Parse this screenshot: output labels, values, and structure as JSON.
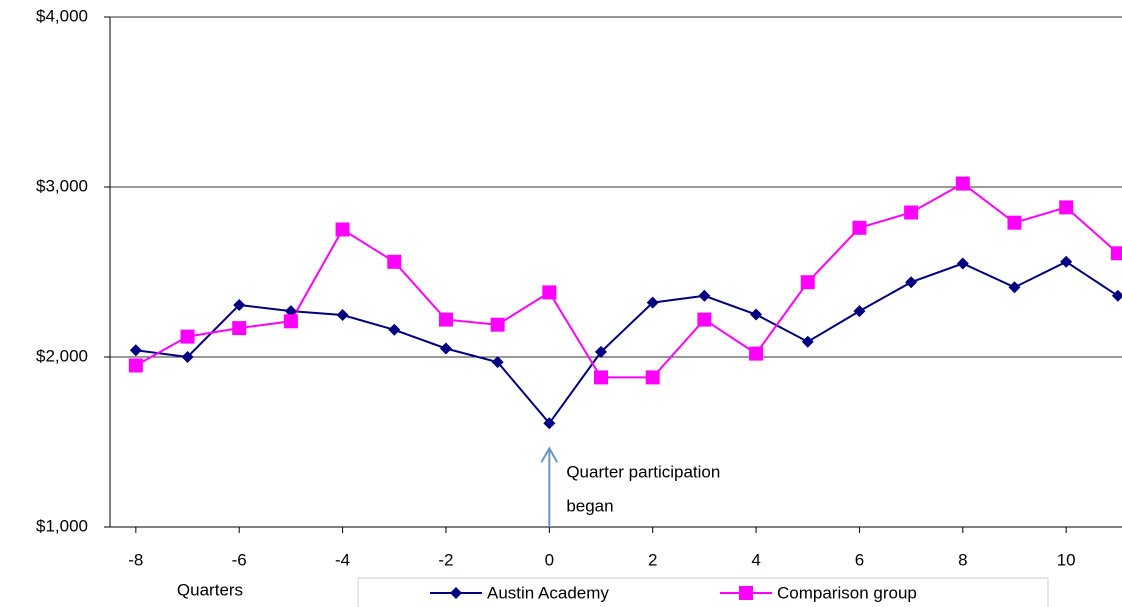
{
  "chart_data": {
    "type": "line",
    "x_label": "Quarters",
    "x": [
      -8,
      -7,
      -6,
      -5,
      -4,
      -3,
      -2,
      -1,
      0,
      1,
      2,
      3,
      4,
      5,
      6,
      7,
      8,
      9,
      10,
      11
    ],
    "series": [
      {
        "name": "Austin Academy",
        "color": "#000080",
        "marker": "diamond",
        "values": [
          2040,
          2000,
          2306,
          2270,
          2247,
          2160,
          2050,
          1970,
          1610,
          2030,
          2320,
          2360,
          2250,
          2090,
          2270,
          2440,
          2550,
          2410,
          2560,
          2360
        ]
      },
      {
        "name": "Comparison group",
        "color": "#ff00ff",
        "marker": "square",
        "values": [
          1950,
          2120,
          2170,
          2210,
          2750,
          2560,
          2220,
          2190,
          2380,
          1880,
          1880,
          2220,
          2020,
          2440,
          2760,
          2850,
          3020,
          2790,
          2880,
          2610
        ]
      }
    ],
    "xlim": [
      -8.5,
      11.08
    ],
    "xticks": [
      -8,
      -6,
      -4,
      -2,
      0,
      2,
      4,
      6,
      8,
      10
    ],
    "ylim": [
      1000,
      4000
    ],
    "yticks": [
      {
        "value": 1000,
        "label": "$1,000"
      },
      {
        "value": 2000,
        "label": "$2,000"
      },
      {
        "value": 3000,
        "label": "$3,000"
      },
      {
        "value": 4000,
        "label": "$4,000"
      }
    ],
    "grid": true,
    "legend": "bottom",
    "annotation": {
      "x": 0,
      "lines": [
        "Quarter participation",
        "began"
      ]
    }
  }
}
